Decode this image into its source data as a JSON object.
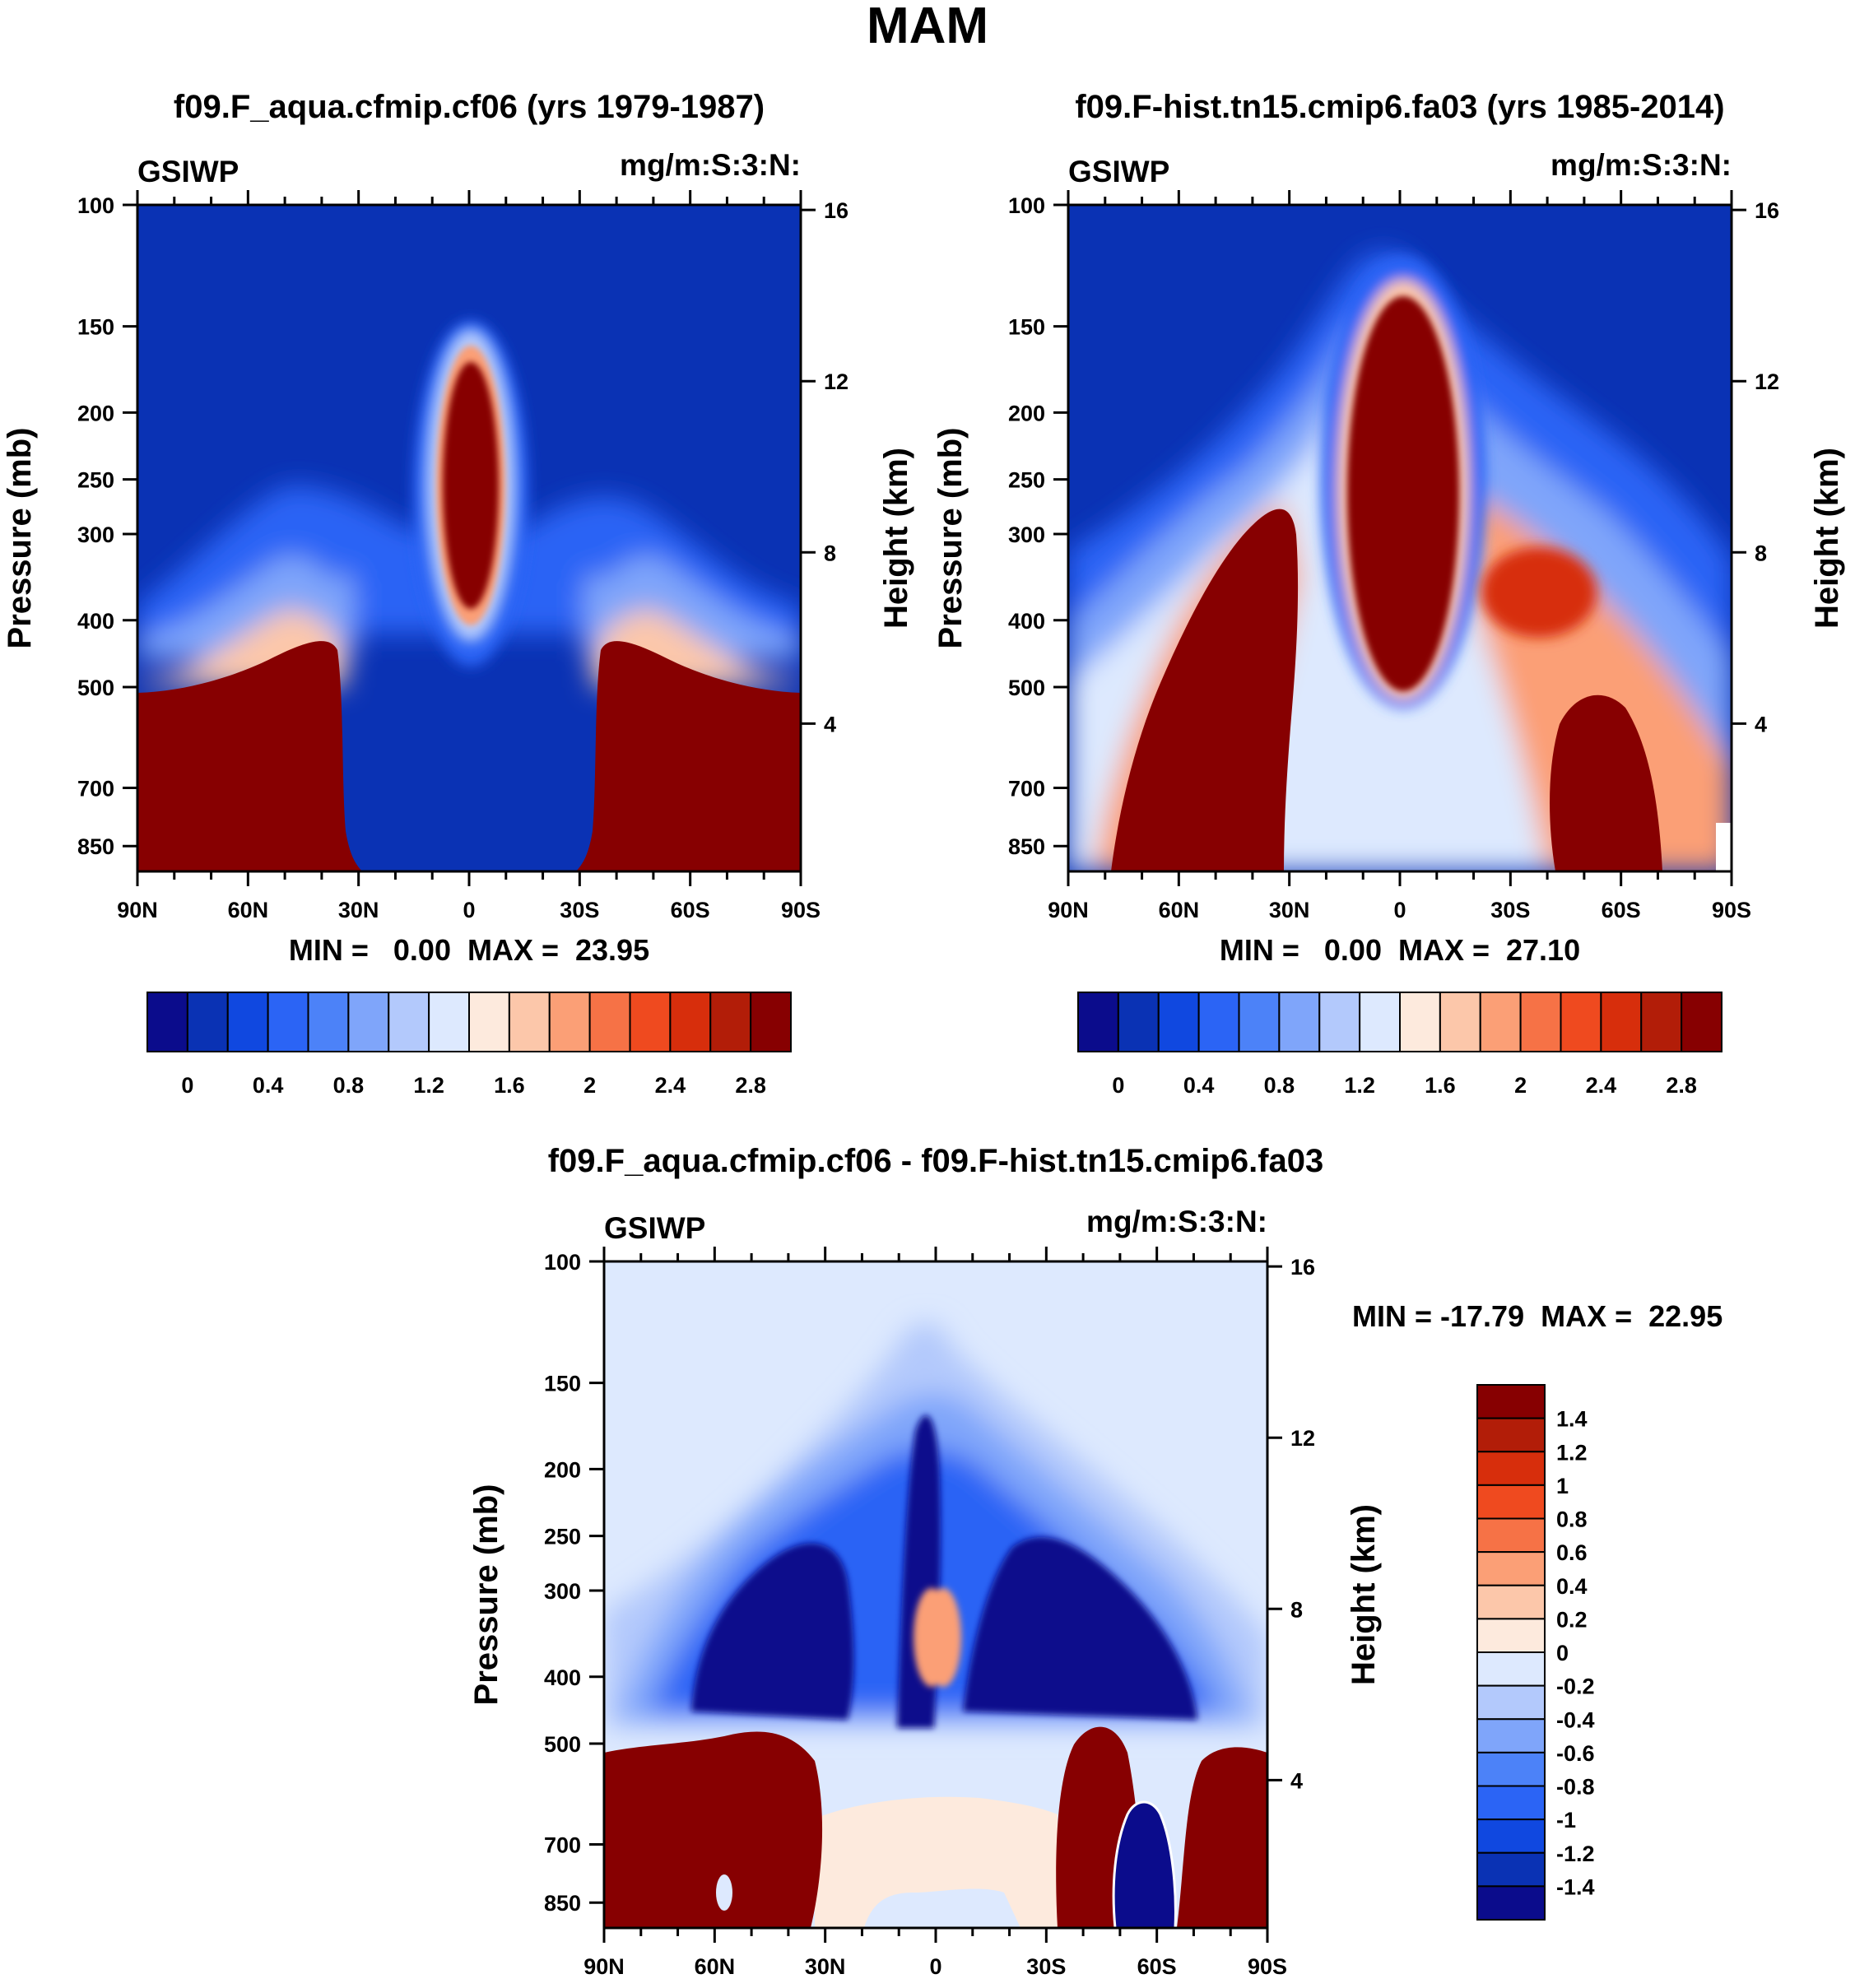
{
  "page": {
    "title": "MAM"
  },
  "panels": [
    {
      "id": "panel-1",
      "title": "f09.F_aqua.cfmip.cf06 (yrs 1979-1987)",
      "left_label": "GSIWP",
      "right_label": "mg/m:S:3:N:",
      "stats": "MIN =   0.00  MAX =  23.95"
    },
    {
      "id": "panel-2",
      "title": "f09.F-hist.tn15.cmip6.fa03 (yrs 1985-2014)",
      "left_label": "GSIWP",
      "right_label": "mg/m:S:3:N:",
      "stats": "MIN =   0.00  MAX =  27.10"
    },
    {
      "id": "panel-3",
      "title": "f09.F_aqua.cfmip.cf06 - f09.F-hist.tn15.cmip6.fa03",
      "left_label": "GSIWP",
      "right_label": "mg/m:S:3:N:",
      "stats": "MIN = -17.79  MAX =  22.95"
    }
  ],
  "axes": {
    "ylabel": "Pressure (mb)",
    "ylabel_right": "Height (km)",
    "pressure_ticks": [
      100,
      150,
      200,
      250,
      300,
      400,
      500,
      700,
      850
    ],
    "pressure_labels": [
      "100",
      "150",
      "200",
      "250",
      "300",
      "400",
      "500",
      "700",
      "850"
    ],
    "height_ticks": [
      16,
      12,
      8,
      4
    ],
    "height_labels": [
      "16",
      "12",
      "8",
      "4"
    ],
    "lat_values": [
      90,
      60,
      30,
      0,
      -30,
      -60,
      -90
    ],
    "lat_labels": [
      "90N",
      "60N",
      "30N",
      "0",
      "30S",
      "60S",
      "90S"
    ],
    "ylim": [
      100,
      925
    ]
  },
  "colorbars": {
    "abs": {
      "colors": [
        "#0b0c8c",
        "#0a32b4",
        "#1048e0",
        "#2b64f5",
        "#4c82f8",
        "#7fa5fa",
        "#b3c9fc",
        "#dde9fe",
        "#fdeadd",
        "#fcc7aa",
        "#fb9f76",
        "#f67246",
        "#ef4a1f",
        "#d72e0c",
        "#b21d08",
        "#870001"
      ],
      "tick_labels": [
        "0",
        "0.4",
        "0.8",
        "1.2",
        "1.6",
        "2",
        "2.4",
        "2.8"
      ]
    },
    "diff": {
      "colors": [
        "#0b0c8c",
        "#0a32b4",
        "#1048e0",
        "#2b64f5",
        "#4c82f8",
        "#7fa5fa",
        "#b3c9fc",
        "#dde9fe",
        "#fdeadd",
        "#fcc7aa",
        "#fb9f76",
        "#f67246",
        "#ef4a1f",
        "#d72e0c",
        "#b21d08",
        "#870001"
      ],
      "tick_labels": [
        "1.4",
        "1.2",
        "1",
        "0.8",
        "0.6",
        "0.4",
        "0.2",
        "0",
        "-0.2",
        "-0.4",
        "-0.6",
        "-0.8",
        "-1",
        "-1.2",
        "-1.4"
      ]
    }
  },
  "chart_data": [
    {
      "type": "heatmap",
      "title": "f09.F_aqua.cfmip.cf06 (yrs 1979-1987)",
      "variable": "GSIWP",
      "units": "mg/m:S:3:N:",
      "xlabel": "",
      "ylabel": "Pressure (mb)",
      "ylabel_right": "Height (km)",
      "x_range": [
        90,
        -90
      ],
      "ylim": [
        100,
        925
      ],
      "x_ticks": [
        "90N",
        "60N",
        "30N",
        "0",
        "30S",
        "60S",
        "90S"
      ],
      "contour_levels": [
        0,
        0.2,
        0.4,
        0.6,
        0.8,
        1.0,
        1.2,
        1.4,
        1.6,
        1.8,
        2.0,
        2.2,
        2.4,
        2.6,
        2.8
      ],
      "min": 0.0,
      "max": 23.95
    },
    {
      "type": "heatmap",
      "title": "f09.F-hist.tn15.cmip6.fa03 (yrs 1985-2014)",
      "variable": "GSIWP",
      "units": "mg/m:S:3:N:",
      "xlabel": "",
      "ylabel": "Pressure (mb)",
      "ylabel_right": "Height (km)",
      "x_range": [
        90,
        -90
      ],
      "ylim": [
        100,
        925
      ],
      "x_ticks": [
        "90N",
        "60N",
        "30N",
        "0",
        "30S",
        "60S",
        "90S"
      ],
      "contour_levels": [
        0,
        0.2,
        0.4,
        0.6,
        0.8,
        1.0,
        1.2,
        1.4,
        1.6,
        1.8,
        2.0,
        2.2,
        2.4,
        2.6,
        2.8
      ],
      "min": 0.0,
      "max": 27.1
    },
    {
      "type": "heatmap",
      "title": "f09.F_aqua.cfmip.cf06 - f09.F-hist.tn15.cmip6.fa03",
      "variable": "GSIWP",
      "units": "mg/m:S:3:N:",
      "xlabel": "",
      "ylabel": "Pressure (mb)",
      "ylabel_right": "Height (km)",
      "x_range": [
        90,
        -90
      ],
      "ylim": [
        100,
        925
      ],
      "x_ticks": [
        "90N",
        "60N",
        "30N",
        "0",
        "30S",
        "60S",
        "90S"
      ],
      "contour_levels": [
        -1.4,
        -1.2,
        -1.0,
        -0.8,
        -0.6,
        -0.4,
        -0.2,
        0,
        0.2,
        0.4,
        0.6,
        0.8,
        1.0,
        1.2,
        1.4
      ],
      "min": -17.79,
      "max": 22.95
    }
  ]
}
